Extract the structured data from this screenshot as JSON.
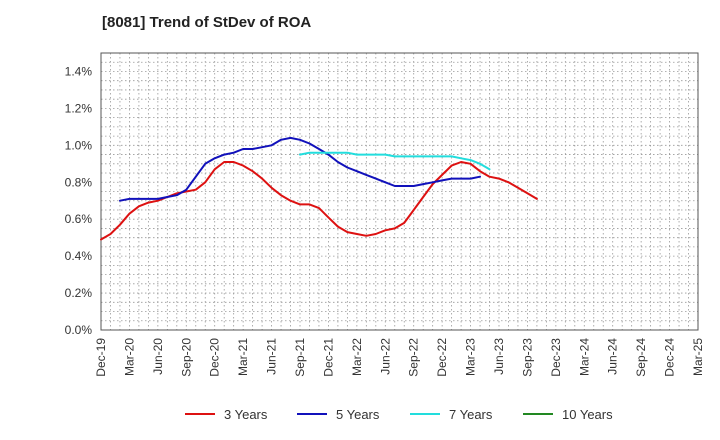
{
  "chart_data": {
    "type": "line",
    "title": "[8081]  Trend of StDev of ROA",
    "xlabel": "",
    "ylabel": "",
    "x_ticks": [
      "Dec-19",
      "Mar-20",
      "Jun-20",
      "Sep-20",
      "Dec-20",
      "Mar-21",
      "Jun-21",
      "Sep-21",
      "Dec-21",
      "Mar-22",
      "Jun-22",
      "Sep-22",
      "Dec-22",
      "Mar-23",
      "Jun-23",
      "Sep-23",
      "Dec-23",
      "Mar-24",
      "Jun-24",
      "Sep-24",
      "Dec-24",
      "Mar-25"
    ],
    "y_ticks": [
      "0.0%",
      "0.2%",
      "0.4%",
      "0.6%",
      "0.8%",
      "1.0%",
      "1.2%",
      "1.4%"
    ],
    "ylim": [
      0,
      1.5
    ],
    "grid": true,
    "legend_position": "bottom",
    "series": [
      {
        "name": "3 Years",
        "color": "#dd1111",
        "start_index": 0,
        "values": [
          0.49,
          0.52,
          0.57,
          0.63,
          0.67,
          0.69,
          0.7,
          0.72,
          0.74,
          0.75,
          0.76,
          0.8,
          0.87,
          0.91,
          0.91,
          0.89,
          0.86,
          0.82,
          0.77,
          0.73,
          0.7,
          0.68,
          0.68,
          0.66,
          0.61,
          0.56,
          0.53,
          0.52,
          0.51,
          0.52,
          0.54,
          0.55,
          0.58,
          0.65,
          0.72,
          0.79,
          0.84,
          0.89,
          0.91,
          0.9,
          0.86,
          0.83,
          0.82,
          0.8,
          0.77,
          0.74,
          0.71
        ]
      },
      {
        "name": "5 Years",
        "color": "#1111bb",
        "start_index": 2,
        "values": [
          0.7,
          0.71,
          0.71,
          0.71,
          0.71,
          0.72,
          0.73,
          0.76,
          0.83,
          0.9,
          0.93,
          0.95,
          0.96,
          0.98,
          0.98,
          0.99,
          1.0,
          1.03,
          1.04,
          1.03,
          1.01,
          0.98,
          0.95,
          0.91,
          0.88,
          0.86,
          0.84,
          0.82,
          0.8,
          0.78,
          0.78,
          0.78,
          0.79,
          0.8,
          0.81,
          0.82,
          0.82,
          0.82,
          0.83
        ]
      },
      {
        "name": "7 Years",
        "color": "#22dddd",
        "start_index": 21,
        "values": [
          0.95,
          0.96,
          0.96,
          0.96,
          0.96,
          0.96,
          0.95,
          0.95,
          0.95,
          0.95,
          0.94,
          0.94,
          0.94,
          0.94,
          0.94,
          0.94,
          0.94,
          0.93,
          0.92,
          0.9,
          0.87
        ]
      },
      {
        "name": "10 Years",
        "color": "#228822",
        "start_index": 0,
        "values": []
      }
    ]
  }
}
